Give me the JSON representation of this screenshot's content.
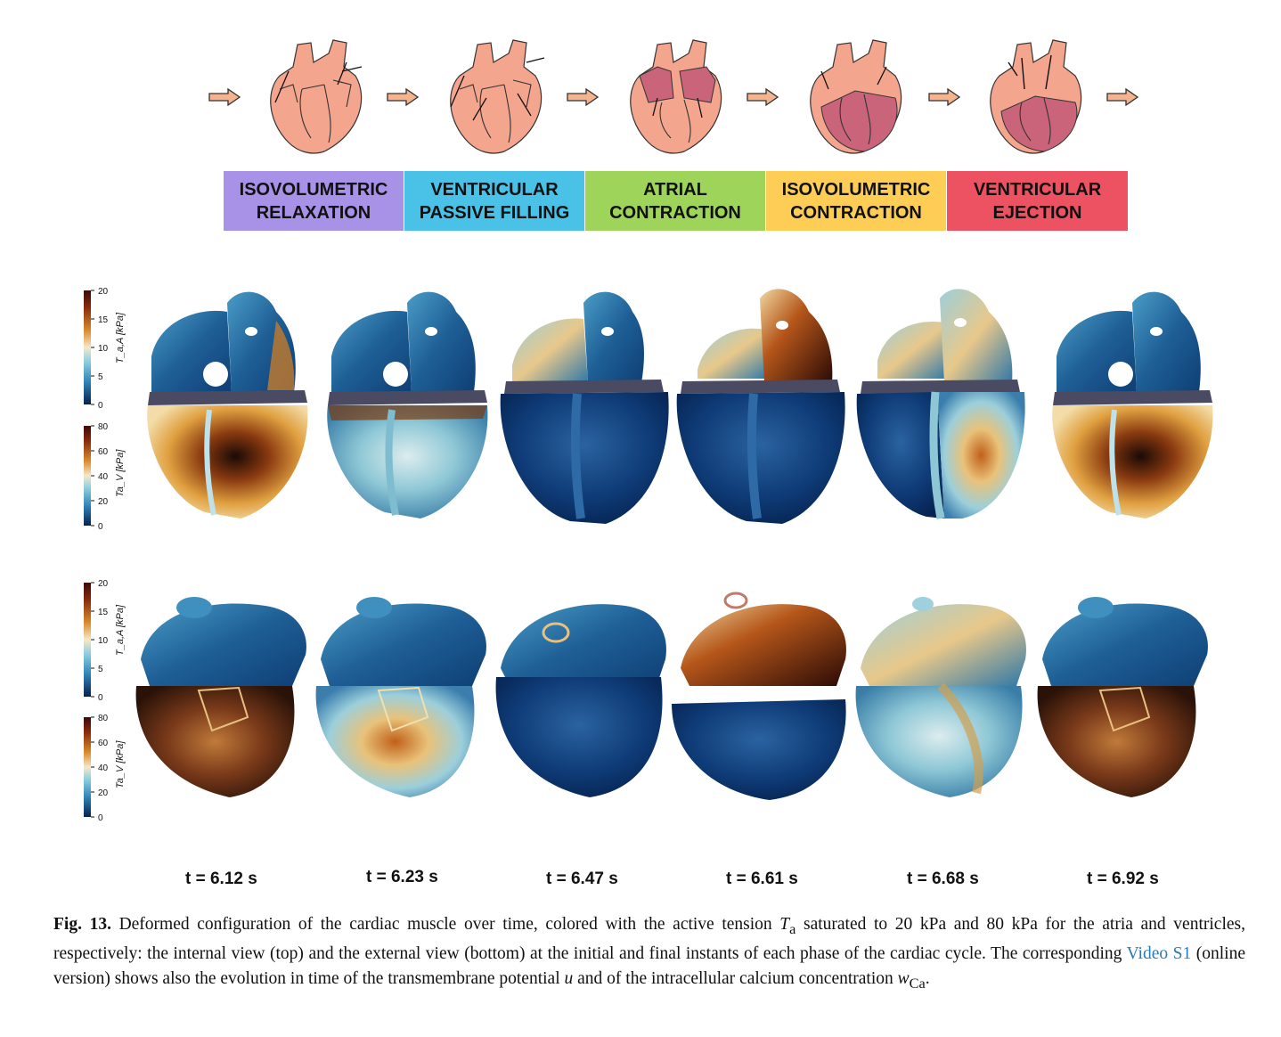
{
  "colors": {
    "relaxation": "#a892e8",
    "passive_filling": "#4ac2e8",
    "atrial_contraction": "#9ed45a",
    "isovolumetric_contraction": "#fdcd55",
    "ejection": "#ec5262",
    "heart_light": "#f4a58e",
    "heart_dark": "#c9647a",
    "link": "#2a7ab8"
  },
  "phases": [
    {
      "label": "ISOVOLUMETRIC\nRELAXATION",
      "color_key": "relaxation"
    },
    {
      "label": "VENTRICULAR\nPASSIVE FILLING",
      "color_key": "passive_filling"
    },
    {
      "label": "ATRIAL\nCONTRACTION",
      "color_key": "atrial_contraction"
    },
    {
      "label": "ISOVOLUMETRIC\nCONTRACTION",
      "color_key": "isovolumetric_contraction"
    },
    {
      "label": "VENTRICULAR\nEJECTION",
      "color_key": "ejection"
    }
  ],
  "colorbars": {
    "atria": {
      "label": "T_a,A [kPa]",
      "ticks": [
        "20",
        "15",
        "10",
        "5",
        "0"
      ]
    },
    "ventricles": {
      "label": "Ta_V [kPa]",
      "ticks": [
        "80",
        "60",
        "40",
        "20",
        "0"
      ]
    }
  },
  "times": [
    "t = 6.12 s",
    "t = 6.23 s",
    "t = 6.47 s",
    "t = 6.61 s",
    "t = 6.68 s",
    "t = 6.92 s"
  ],
  "caption": {
    "label": "Fig. 13.",
    "text_1": " Deformed configuration of the cardiac muscle over time, colored with the active tension ",
    "symbol_Ta": "T",
    "symbol_Ta_sub": "a",
    "text_2": " saturated to 20 kPa and 80 kPa for the atria and ventricles, respectively: the internal view (top) and the external view (bottom) at the initial and final instants of each phase of the cardiac cycle. The corresponding ",
    "link": "Video S1",
    "text_3": " (online version) shows also the evolution in time of the transmembrane potential ",
    "symbol_u": "u",
    "text_4": " and of the intracellular calcium concentration ",
    "symbol_w": "w",
    "symbol_w_sub": "Ca",
    "text_5": "."
  }
}
